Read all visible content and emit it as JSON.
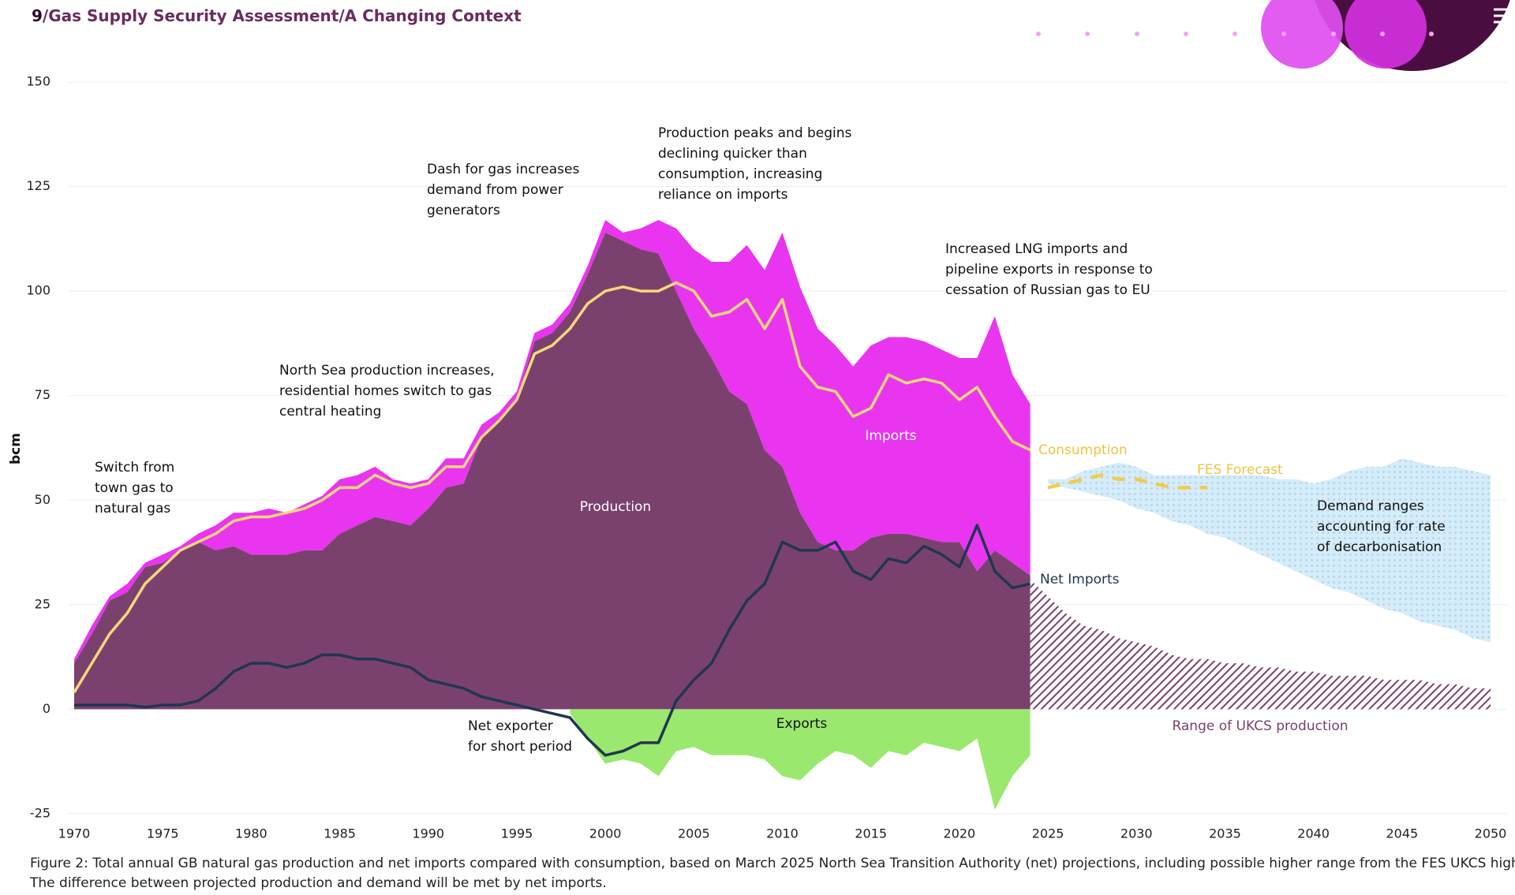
{
  "header": {
    "page_number": "9",
    "breadcrumb": "/Gas Supply Security Assessment/A Changing Context"
  },
  "chart_data": {
    "type": "area",
    "y_label": "bcm",
    "x": [
      1970,
      1971,
      1972,
      1973,
      1974,
      1975,
      1976,
      1977,
      1978,
      1979,
      1980,
      1981,
      1982,
      1983,
      1984,
      1985,
      1986,
      1987,
      1988,
      1989,
      1990,
      1991,
      1992,
      1993,
      1994,
      1995,
      1996,
      1997,
      1998,
      1999,
      2000,
      2001,
      2002,
      2003,
      2004,
      2005,
      2006,
      2007,
      2008,
      2009,
      2010,
      2011,
      2012,
      2013,
      2014,
      2015,
      2016,
      2017,
      2018,
      2019,
      2020,
      2021,
      2022,
      2023,
      2024,
      2025,
      2026,
      2027,
      2028,
      2029,
      2030,
      2031,
      2032,
      2033,
      2034,
      2035,
      2036,
      2037,
      2038,
      2039,
      2040,
      2041,
      2042,
      2043,
      2044,
      2045,
      2046,
      2047,
      2048,
      2049,
      2050
    ],
    "xlim": [
      1970,
      2050
    ],
    "xticks": [
      1970,
      1975,
      1980,
      1985,
      1990,
      1995,
      2000,
      2005,
      2010,
      2015,
      2020,
      2025,
      2030,
      2035,
      2040,
      2045,
      2050
    ],
    "ylim": [
      -25,
      150
    ],
    "yticks": [
      -25,
      0,
      25,
      50,
      75,
      100,
      125,
      150
    ],
    "grid": true,
    "series": [
      {
        "name": "Production",
        "style": "area",
        "color": "#7b416e",
        "values": [
          11,
          18,
          26,
          28,
          34,
          35,
          38,
          40,
          38,
          39,
          37,
          37,
          37,
          38,
          38,
          42,
          44,
          46,
          45,
          44,
          48,
          53,
          54,
          65,
          69,
          74,
          88,
          90,
          95,
          104,
          114,
          112,
          110,
          109,
          100,
          91,
          84,
          76,
          73,
          62,
          58,
          47,
          40,
          38,
          38,
          41,
          42,
          42,
          41,
          40,
          40,
          33,
          38,
          35,
          32,
          null,
          null,
          null,
          null,
          null,
          null,
          null,
          null,
          null,
          null,
          null,
          null,
          null,
          null,
          null,
          null,
          null,
          null,
          null,
          null,
          null,
          null,
          null,
          null,
          null,
          null
        ]
      },
      {
        "name": "Imports",
        "style": "area",
        "stacked_on": 0,
        "color": "#e935f0",
        "values": [
          1,
          2,
          1,
          2,
          1,
          2,
          1,
          2,
          6,
          8,
          10,
          11,
          10,
          11,
          13,
          13,
          12,
          12,
          10,
          10,
          7,
          7,
          6,
          3,
          2,
          2,
          2,
          2,
          2,
          2,
          3,
          2,
          5,
          8,
          15,
          19,
          23,
          31,
          38,
          43,
          56,
          54,
          51,
          49,
          44,
          46,
          47,
          47,
          47,
          46,
          44,
          51,
          56,
          45,
          41,
          null,
          null,
          null,
          null,
          null,
          null,
          null,
          null,
          null,
          null,
          null,
          null,
          null,
          null,
          null,
          null,
          null,
          null,
          null,
          null,
          null,
          null,
          null,
          null,
          null,
          null
        ]
      },
      {
        "name": "Exports",
        "style": "area",
        "color": "#9be86f",
        "values": [
          null,
          null,
          null,
          null,
          null,
          null,
          null,
          null,
          null,
          null,
          null,
          null,
          null,
          null,
          null,
          null,
          null,
          null,
          null,
          null,
          null,
          null,
          null,
          null,
          null,
          null,
          null,
          null,
          -1,
          -7,
          -13,
          -12,
          -13,
          -16,
          -10,
          -9,
          -11,
          -11,
          -11,
          -12,
          -16,
          -17,
          -13,
          -10,
          -11,
          -14,
          -10,
          -11,
          -8,
          -9,
          -10,
          -7,
          -24,
          -16,
          -11,
          null,
          null,
          null,
          null,
          null,
          null,
          null,
          null,
          null,
          null,
          null,
          null,
          null,
          null,
          null,
          null,
          null,
          null,
          null,
          null,
          null,
          null,
          null,
          null,
          null,
          null
        ]
      },
      {
        "name": "Range of UKCS production",
        "style": "hatched",
        "color": "#7b416e",
        "values": [
          null,
          null,
          null,
          null,
          null,
          null,
          null,
          null,
          null,
          null,
          null,
          null,
          null,
          null,
          null,
          null,
          null,
          null,
          null,
          null,
          null,
          null,
          null,
          null,
          null,
          null,
          null,
          null,
          null,
          null,
          null,
          null,
          null,
          null,
          null,
          null,
          null,
          null,
          null,
          null,
          null,
          null,
          null,
          null,
          null,
          null,
          null,
          null,
          null,
          null,
          null,
          null,
          null,
          null,
          31,
          27,
          23,
          20,
          19,
          17,
          16,
          15,
          13,
          12,
          12,
          11,
          11,
          10,
          10,
          9,
          9,
          8,
          8,
          8,
          7,
          7,
          7,
          6,
          6,
          5,
          5
        ]
      },
      {
        "style": "band",
        "color": "#a8d3ef",
        "upper": [
          null,
          null,
          null,
          null,
          null,
          null,
          null,
          null,
          null,
          null,
          null,
          null,
          null,
          null,
          null,
          null,
          null,
          null,
          null,
          null,
          null,
          null,
          null,
          null,
          null,
          null,
          null,
          null,
          null,
          null,
          null,
          null,
          null,
          null,
          null,
          null,
          null,
          null,
          null,
          null,
          null,
          null,
          null,
          null,
          null,
          null,
          null,
          null,
          null,
          null,
          null,
          null,
          null,
          null,
          null,
          55,
          55,
          57,
          58,
          59,
          58,
          56,
          56,
          56,
          56,
          56,
          56,
          56,
          55,
          55,
          54,
          55,
          57,
          58,
          58,
          60,
          59,
          58,
          58,
          57,
          56
        ],
        "lower": [
          null,
          null,
          null,
          null,
          null,
          null,
          null,
          null,
          null,
          null,
          null,
          null,
          null,
          null,
          null,
          null,
          null,
          null,
          null,
          null,
          null,
          null,
          null,
          null,
          null,
          null,
          null,
          null,
          null,
          null,
          null,
          null,
          null,
          null,
          null,
          null,
          null,
          null,
          null,
          null,
          null,
          null,
          null,
          null,
          null,
          null,
          null,
          null,
          null,
          null,
          null,
          null,
          null,
          null,
          null,
          54,
          53,
          52,
          51,
          50,
          48,
          47,
          45,
          44,
          42,
          41,
          39,
          37,
          35,
          33,
          31,
          29,
          28,
          26,
          24,
          23,
          21,
          20,
          19,
          17,
          16
        ]
      },
      {
        "name": "Consumption",
        "style": "line",
        "color": "#f5d97a",
        "values": [
          4,
          11,
          18,
          23,
          30,
          34,
          38,
          40,
          42,
          45,
          46,
          46,
          47,
          48,
          50,
          53,
          53,
          56,
          54,
          53,
          54,
          58,
          58,
          65,
          69,
          74,
          85,
          87,
          91,
          97,
          100,
          101,
          100,
          100,
          102,
          100,
          94,
          95,
          98,
          91,
          98,
          82,
          77,
          76,
          70,
          72,
          80,
          78,
          79,
          78,
          74,
          77,
          70,
          64,
          62,
          null,
          null,
          null,
          null,
          null,
          null,
          null,
          null,
          null,
          null,
          null,
          null,
          null,
          null,
          null,
          null,
          null,
          null,
          null,
          null,
          null,
          null,
          null,
          null,
          null,
          null
        ]
      },
      {
        "name": "Net Imports",
        "style": "line",
        "color": "#1f3651",
        "values": [
          1,
          1,
          1,
          1,
          0.5,
          1,
          1,
          2,
          5,
          9,
          11,
          11,
          10,
          11,
          13,
          13,
          12,
          12,
          11,
          10,
          7,
          6,
          5,
          3,
          2,
          1,
          0,
          -1,
          -2,
          -7,
          -11,
          -10,
          -8,
          -8,
          2,
          7,
          11,
          19,
          26,
          30,
          40,
          38,
          38,
          40,
          33,
          31,
          36,
          35,
          39,
          37,
          34,
          44,
          33,
          29,
          30,
          null,
          null,
          null,
          null,
          null,
          null,
          null,
          null,
          null,
          null,
          null,
          null,
          null,
          null,
          null,
          null,
          null,
          null,
          null,
          null,
          null,
          null,
          null,
          null,
          null,
          null
        ]
      },
      {
        "name": "FES Forecast",
        "style": "dashed",
        "color": "#f2cc4a",
        "values": [
          null,
          null,
          null,
          null,
          null,
          null,
          null,
          null,
          null,
          null,
          null,
          null,
          null,
          null,
          null,
          null,
          null,
          null,
          null,
          null,
          null,
          null,
          null,
          null,
          null,
          null,
          null,
          null,
          null,
          null,
          null,
          null,
          null,
          null,
          null,
          null,
          null,
          null,
          null,
          null,
          null,
          null,
          null,
          null,
          null,
          null,
          null,
          null,
          null,
          null,
          null,
          null,
          null,
          null,
          null,
          53,
          54,
          55,
          56,
          55,
          55,
          54,
          53,
          53,
          53,
          null,
          null,
          null,
          null,
          null,
          null,
          null,
          null,
          null,
          null,
          null,
          null,
          null,
          null,
          null,
          null
        ]
      }
    ],
    "annotations": [
      [
        "Switch from",
        "town gas to",
        "natural gas"
      ],
      [
        "North Sea production increases,",
        "residential homes switch to gas",
        "central heating"
      ],
      [
        "Dash for gas increases",
        "demand from power",
        "generators"
      ],
      [
        "Production peaks and begins",
        "declining quicker than",
        "consumption, increasing",
        "reliance on imports"
      ],
      [
        "Increased LNG imports and",
        "pipeline exports in response to",
        "cessation of Russian gas to EU"
      ],
      [
        "Net exporter",
        "for short period"
      ],
      [
        "Demand ranges",
        "accounting for rate",
        "of decarbonisation"
      ]
    ]
  },
  "caption": [
    "Figure 2: Total annual GB natural gas production and net imports compared with consumption, based on March 2025 North Sea Transition Authority (net) projections, including possible higher range from the FES UKCS high case.",
    "The difference between projected production and demand will be met by net imports."
  ]
}
